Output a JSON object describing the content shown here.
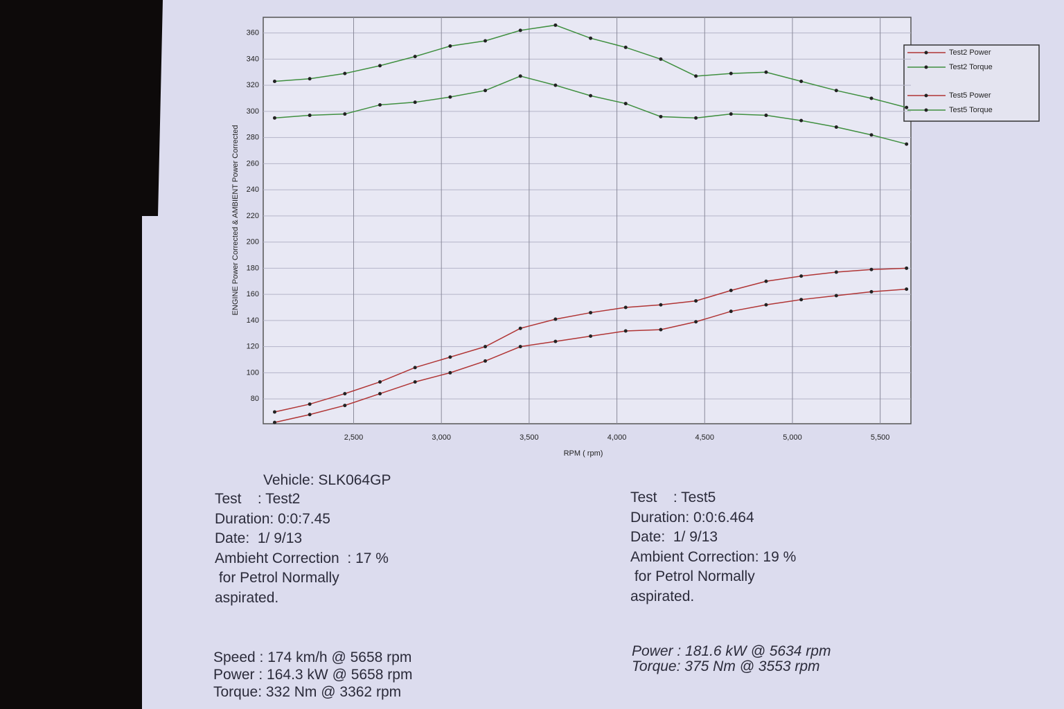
{
  "chart_data": {
    "type": "line",
    "y_label": "ENGINE Power Corrected & AMBIENT Power Corrected",
    "x_label": "RPM ( rpm)",
    "x": [
      2050,
      2250,
      2450,
      2650,
      2850,
      3050,
      3250,
      3450,
      3650,
      3850,
      4050,
      4250,
      4450,
      4650,
      4850,
      5050,
      5250,
      5450,
      5650
    ],
    "series": [
      {
        "name": "Test2  Power",
        "color": "#b03434",
        "values": [
          62,
          68,
          75,
          84,
          93,
          100,
          109,
          120,
          124,
          128,
          132,
          133,
          139,
          147,
          152,
          156,
          159,
          162,
          164
        ]
      },
      {
        "name": "Test2  Torque",
        "color": "#3f8f3f",
        "values": [
          295,
          297,
          298,
          305,
          307,
          311,
          316,
          327,
          320,
          312,
          306,
          296,
          295,
          298,
          297,
          293,
          288,
          282,
          275
        ]
      },
      {
        "name": "Test5  Power",
        "color": "#b03434",
        "values": [
          70,
          76,
          84,
          93,
          104,
          112,
          120,
          134,
          141,
          146,
          150,
          152,
          155,
          163,
          170,
          174,
          177,
          179,
          180
        ]
      },
      {
        "name": "Test5  Torque",
        "color": "#3f8f3f",
        "values": [
          323,
          325,
          329,
          335,
          342,
          350,
          354,
          362,
          366,
          356,
          349,
          340,
          327,
          329,
          330,
          323,
          316,
          310,
          303
        ]
      }
    ],
    "xlim": [
      1985,
      5675
    ],
    "ylim": [
      61,
      372
    ],
    "xticks": [
      {
        "value": 2500,
        "label": "2,500"
      },
      {
        "value": 3000,
        "label": "3,000"
      },
      {
        "value": 3500,
        "label": "3,500"
      },
      {
        "value": 4000,
        "label": "4,000"
      },
      {
        "value": 4500,
        "label": "4,500"
      },
      {
        "value": 5000,
        "label": "5,000"
      },
      {
        "value": 5500,
        "label": "5,500"
      }
    ],
    "yticks": [
      80,
      100,
      120,
      140,
      160,
      180,
      200,
      220,
      240,
      260,
      280,
      300,
      320,
      340,
      360
    ],
    "grid": true,
    "legend": "outside-right"
  },
  "report": {
    "vehicle": "Vehicle: SLK064GP",
    "left": [
      "Test    : Test2",
      "Duration: 0:0:7.45",
      "Date:  1/ 9/13",
      "Ambieht Correction  : 17 %",
      " for Petrol Normally",
      "aspirated."
    ],
    "left_summary": [
      "Speed : 174 km/h @ 5658 rpm",
      "Power : 164.3 kW @ 5658 rpm",
      "Torque: 332 Nm @ 3362 rpm"
    ],
    "right": [
      "Test    : Test5",
      "Duration: 0:0:6.464",
      "Date:  1/ 9/13",
      "Ambient Correction: 19 %",
      " for Petrol Normally",
      "aspirated."
    ],
    "right_summary": [
      "Power : 181.6 kW @ 5634 rpm",
      "Torque: 375 Nm @ 3553 rpm"
    ]
  }
}
